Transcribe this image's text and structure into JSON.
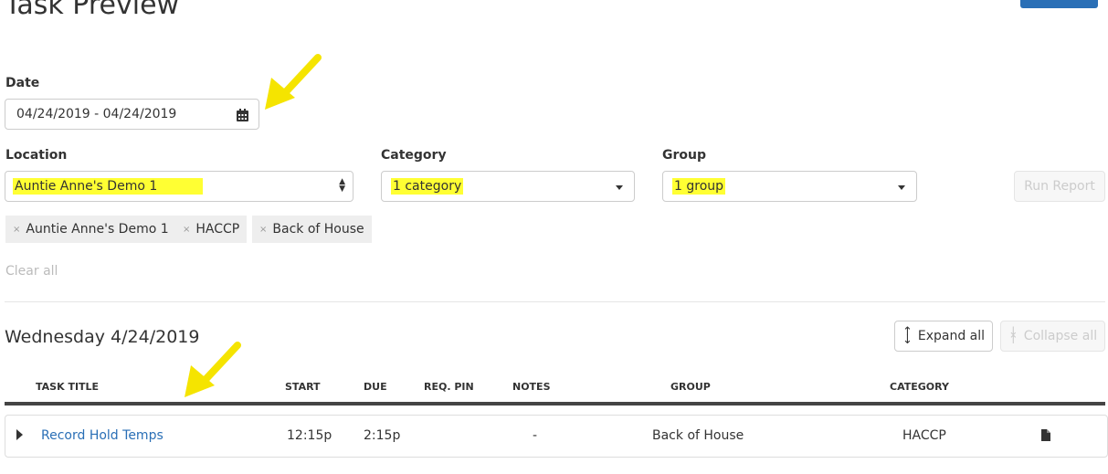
{
  "page": {
    "title": "Task Preview"
  },
  "filters": {
    "date": {
      "label": "Date",
      "value": "04/24/2019 - 04/24/2019",
      "icon": "calendar-icon"
    },
    "location": {
      "label": "Location",
      "value": "Auntie Anne's Demo 1"
    },
    "category": {
      "label": "Category",
      "value": "1 category"
    },
    "group": {
      "label": "Group",
      "value": "1 group"
    },
    "run_report": "Run Report",
    "chips": [
      "Auntie Anne's Demo 1",
      "HACCP",
      "Back of House"
    ],
    "chip_remove": "×",
    "clear_all": "Clear all"
  },
  "results": {
    "date_heading": "Wednesday 4/24/2019",
    "expand_all": "Expand all",
    "collapse_all": "Collapse all",
    "columns": [
      "TASK TITLE",
      "START",
      "DUE",
      "REQ. PIN",
      "NOTES",
      "GROUP",
      "CATEGORY"
    ],
    "rows": [
      {
        "title": "Record Hold Temps",
        "start": "12:15p",
        "due": "2:15p",
        "notes": "-",
        "group": "Back of House",
        "category": "HACCP",
        "icon": "document-icon"
      }
    ]
  },
  "colors": {
    "link": "#2a6fb6",
    "highlight": "#ffff33",
    "annotation_arrow": "#f5e400"
  }
}
